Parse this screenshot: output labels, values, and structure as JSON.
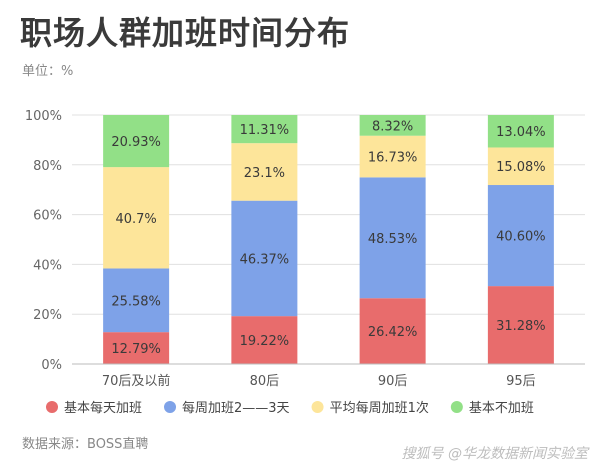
{
  "header": {
    "title": "职场人群加班时间分布",
    "unit": "单位：%"
  },
  "footer": {
    "source": "数据来源：BOSS直聘",
    "watermark": "搜狐号 @华龙数据新闻实验室"
  },
  "chart_data": {
    "type": "bar",
    "stacked": true,
    "categories": [
      "70后及以前",
      "80后",
      "90后",
      "95后"
    ],
    "ylim": [
      0,
      100
    ],
    "yticks": [
      "0%",
      "20%",
      "40%",
      "60%",
      "80%",
      "100%"
    ],
    "yticks_values": [
      0,
      20,
      40,
      60,
      80,
      100
    ],
    "legend_position": "bottom",
    "series": [
      {
        "name": "基本每天加班",
        "color": "#e86c6c",
        "values": [
          12.79,
          19.22,
          26.42,
          31.28
        ],
        "labels": [
          "12.79%",
          "19.22%",
          "26.42%",
          "31.28%"
        ]
      },
      {
        "name": "每周加班2——3天",
        "color": "#7ea2e8",
        "values": [
          25.58,
          46.37,
          48.53,
          40.6
        ],
        "labels": [
          "25.58%",
          "46.37%",
          "48.53%",
          "40.60%"
        ]
      },
      {
        "name": "平均每周加班1次",
        "color": "#fde59a",
        "values": [
          40.7,
          23.1,
          16.73,
          15.08
        ],
        "labels": [
          "40.7%",
          "23.1%",
          "16.73%",
          "15.08%"
        ]
      },
      {
        "name": "基本不加班",
        "color": "#92e087",
        "values": [
          20.93,
          11.31,
          8.32,
          13.04
        ],
        "labels": [
          "20.93%",
          "11.31%",
          "8.32%",
          "13.04%"
        ]
      }
    ]
  }
}
